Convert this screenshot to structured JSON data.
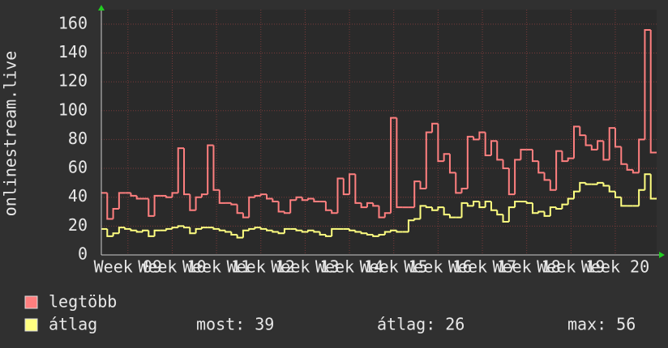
{
  "chart_data": {
    "type": "step",
    "y_label": "onlinestream.live",
    "ylim": [
      0,
      170
    ],
    "yticks": [
      0,
      20,
      40,
      60,
      80,
      100,
      120,
      140,
      160
    ],
    "xlim": [
      0,
      94
    ],
    "xticks": [
      {
        "value": 4.5,
        "label": "Week 09"
      },
      {
        "value": 12,
        "label": "Week 10"
      },
      {
        "value": 19.5,
        "label": "Week 11"
      },
      {
        "value": 27,
        "label": "Week 12"
      },
      {
        "value": 34.5,
        "label": "Week 13"
      },
      {
        "value": 42,
        "label": "Week 14"
      },
      {
        "value": 49.5,
        "label": "Week 15"
      },
      {
        "value": 57,
        "label": "Week 16"
      },
      {
        "value": 64.5,
        "label": "Week 17"
      },
      {
        "value": 72,
        "label": "Week 18"
      },
      {
        "value": 79.5,
        "label": "Week 19"
      },
      {
        "value": 87,
        "label": "Week 20"
      }
    ],
    "grid": true,
    "series": [
      {
        "name": "legtöbb",
        "color": "#ff7f7f",
        "values": [
          43,
          25,
          32,
          43,
          43,
          41,
          39,
          39,
          27,
          41,
          41,
          40,
          43,
          74,
          42,
          31,
          40,
          42,
          76,
          45,
          36,
          36,
          35,
          29,
          26,
          40,
          41,
          42,
          39,
          37,
          30,
          29,
          38,
          40,
          38,
          39,
          37,
          37,
          31,
          29,
          53,
          42,
          56,
          36,
          33,
          36,
          34,
          26,
          29,
          95,
          33,
          33,
          33,
          51,
          46,
          85,
          91,
          65,
          70,
          57,
          43,
          46,
          82,
          80,
          85,
          69,
          79,
          66,
          60,
          42,
          66,
          73,
          73,
          65,
          57,
          52,
          45,
          72,
          65,
          67,
          89,
          83,
          76,
          73,
          79,
          66,
          88,
          75,
          63,
          59,
          57,
          80,
          156,
          71
        ]
      },
      {
        "name": "átlag",
        "color": "#ffff80",
        "values": [
          18,
          13,
          15,
          19,
          18,
          17,
          16,
          17,
          13,
          17,
          17,
          18,
          19,
          20,
          19,
          15,
          18,
          19,
          19,
          18,
          17,
          16,
          14,
          12,
          17,
          18,
          19,
          18,
          17,
          16,
          15,
          18,
          18,
          17,
          16,
          17,
          16,
          14,
          13,
          18,
          18,
          18,
          17,
          16,
          15,
          14,
          13,
          14,
          16,
          17,
          16,
          16,
          24,
          25,
          34,
          33,
          31,
          33,
          28,
          26,
          26,
          36,
          34,
          37,
          33,
          37,
          31,
          28,
          23,
          33,
          37,
          37,
          36,
          29,
          30,
          27,
          33,
          32,
          35,
          39,
          44,
          50,
          49,
          49,
          50,
          48,
          44,
          40,
          34,
          34,
          34,
          45,
          56,
          39
        ]
      }
    ],
    "stats": [
      {
        "label": "most:",
        "value": 39
      },
      {
        "label": "átlag:",
        "value": 26
      },
      {
        "label": "max:",
        "value": 56
      }
    ]
  }
}
